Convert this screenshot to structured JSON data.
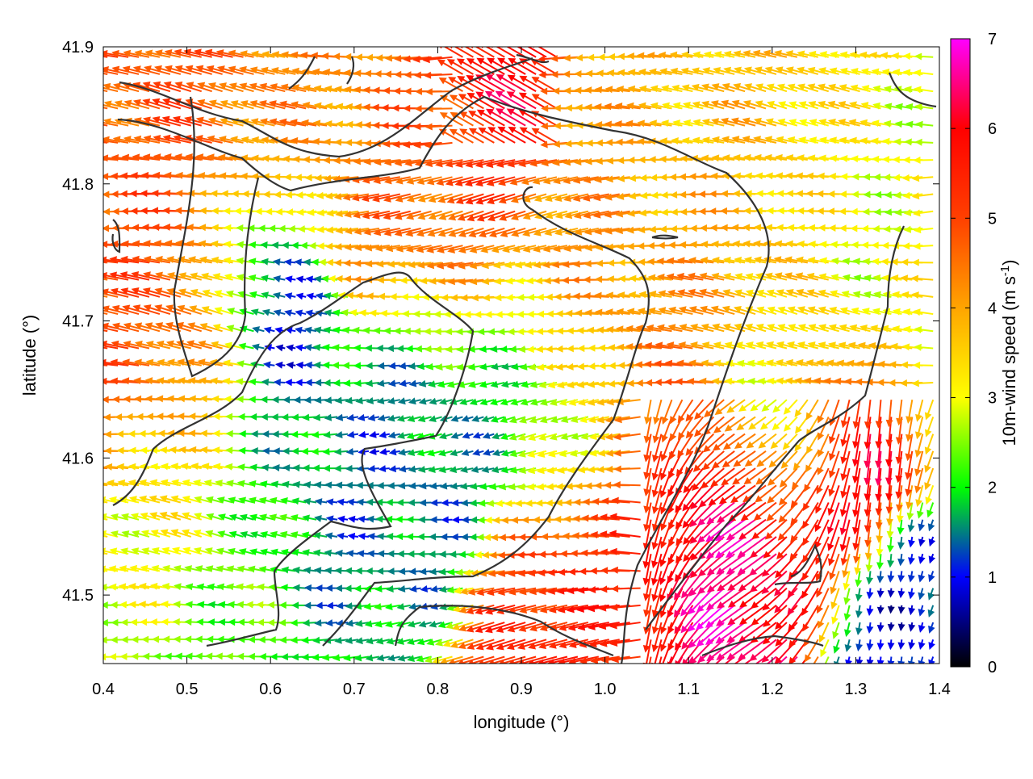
{
  "chart_data": {
    "type": "vector-field",
    "xlabel": "longitude (°)",
    "ylabel": "latitude (°)",
    "xlim": [
      0.4,
      1.4
    ],
    "ylim": [
      41.45,
      41.9
    ],
    "xticks": [
      "0.4",
      "0.5",
      "0.6",
      "0.7",
      "0.8",
      "0.9",
      "1.0",
      "1.1",
      "1.2",
      "1.3",
      "1.4"
    ],
    "yticks": [
      "41.5",
      "41.6",
      "41.7",
      "41.8",
      "41.9"
    ],
    "colorbar": {
      "label": "10m-wind speed (m s",
      "label_sup": "-1",
      "label_close": ")",
      "min": 0,
      "max": 7,
      "ticks": [
        "0",
        "1",
        "2",
        "3",
        "4",
        "5",
        "6",
        "7"
      ],
      "stops": [
        "#000000",
        "#0000ff",
        "#00ff00",
        "#ffff00",
        "#ffa500",
        "#ff0000",
        "#ff00ff"
      ]
    },
    "wind_field_samples": [
      {
        "lon": 0.45,
        "lat": 41.75,
        "speed": 5.0,
        "dir_deg": 190
      },
      {
        "lon": 0.6,
        "lat": 41.72,
        "speed": 1.0,
        "dir_deg": 180
      },
      {
        "lon": 0.75,
        "lat": 41.64,
        "speed": 1.8,
        "dir_deg": 180
      },
      {
        "lon": 0.95,
        "lat": 41.75,
        "speed": 4.2,
        "dir_deg": 185
      },
      {
        "lon": 0.88,
        "lat": 41.86,
        "speed": 7.0,
        "dir_deg": 150
      },
      {
        "lon": 1.15,
        "lat": 41.55,
        "speed": 6.5,
        "dir_deg": 250
      },
      {
        "lon": 1.3,
        "lat": 41.6,
        "speed": 6.5,
        "dir_deg": 230
      },
      {
        "lon": 1.35,
        "lat": 41.5,
        "speed": 1.2,
        "dir_deg": 270
      }
    ]
  }
}
